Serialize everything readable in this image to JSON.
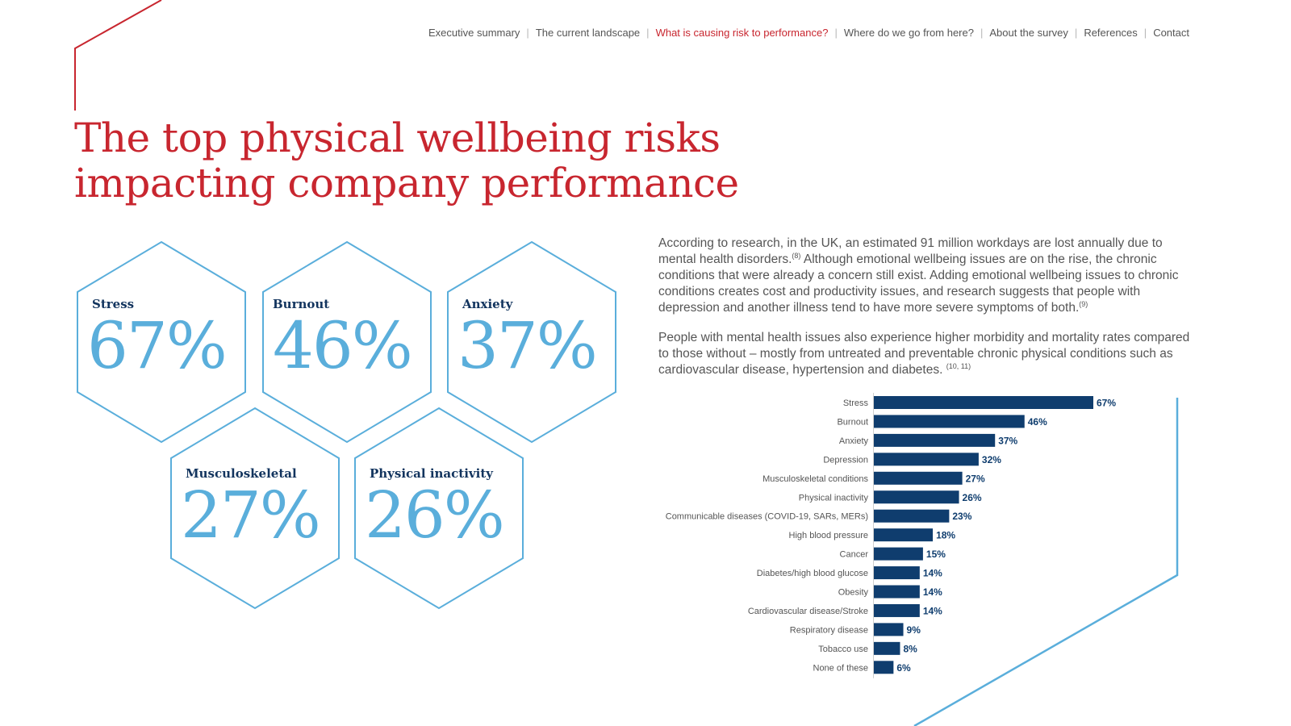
{
  "nav": {
    "items": [
      {
        "label": "Executive summary",
        "active": false
      },
      {
        "label": "The current landscape",
        "active": false
      },
      {
        "label": "What is causing risk to performance?",
        "active": true
      },
      {
        "label": "Where do we go from here?",
        "active": false
      },
      {
        "label": "About the survey",
        "active": false
      },
      {
        "label": "References",
        "active": false
      },
      {
        "label": "Contact",
        "active": false
      }
    ],
    "separator": "|"
  },
  "title": {
    "line1": "The top physical wellbeing risks",
    "line2": "impacting company performance"
  },
  "hexagons": [
    {
      "label": "Stress",
      "value": "67%"
    },
    {
      "label": "Burnout",
      "value": "46%"
    },
    {
      "label": "Anxiety",
      "value": "37%"
    },
    {
      "label": "Musculoskeletal",
      "value": "27%"
    },
    {
      "label": "Physical inactivity",
      "value": "26%"
    }
  ],
  "paragraphs": {
    "p1_a": "According to research, in the UK, an estimated 91 million workdays are lost annually due to mental health disorders.",
    "p1_ref1": "(8)",
    "p1_b": " Although emotional wellbeing issues are on the rise, the chronic conditions that were already a concern still exist. Adding emotional wellbeing issues to chronic conditions creates cost and productivity issues, and research suggests that people with depression and another illness tend to have more severe symptoms of both.",
    "p1_ref2": "(9)",
    "p2_a": "People with mental health issues also experience higher morbidity and mortality rates compared to those without – mostly from untreated and preventable chronic physical conditions such as cardiovascular disease, hypertension and diabetes. ",
    "p2_ref": "(10, 11)"
  },
  "colors": {
    "accent_red": "#c8262f",
    "navy": "#0f3d6e",
    "light_blue": "#5aaedb"
  },
  "chart_data": {
    "type": "bar",
    "orientation": "horizontal",
    "categories": [
      "Stress",
      "Burnout",
      "Anxiety",
      "Depression",
      "Musculoskeletal conditions",
      "Physical inactivity",
      "Communicable diseases (COVID-19, SARs, MERs)",
      "High blood pressure",
      "Cancer",
      "Diabetes/high blood glucose",
      "Obesity",
      "Cardiovascular disease/Stroke",
      "Respiratory disease",
      "Tobacco use",
      "None of these"
    ],
    "values": [
      67,
      46,
      37,
      32,
      27,
      26,
      23,
      18,
      15,
      14,
      14,
      14,
      9,
      8,
      6
    ],
    "value_suffix": "%",
    "xlim": [
      0,
      67
    ],
    "title": "",
    "xlabel": "",
    "ylabel": "",
    "grid": false,
    "bar_color": "#0f3d6e"
  }
}
